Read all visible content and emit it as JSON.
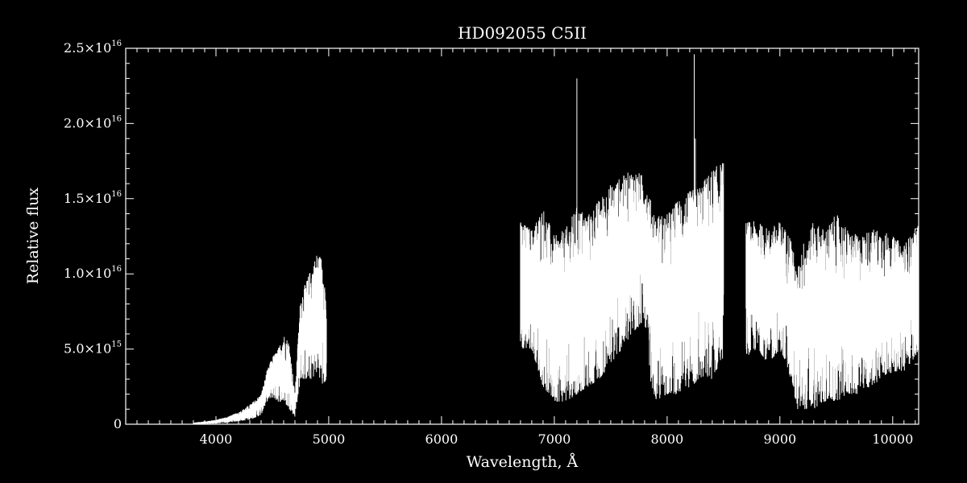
{
  "chart_data": {
    "type": "line",
    "title": "HD092055   C5II",
    "xlabel": "Wavelength, Å",
    "ylabel": "Relative flux",
    "xlim": [
      3200,
      10230
    ],
    "ylim": [
      0,
      2.5e+16
    ],
    "x_ticks": [
      {
        "value": 4000,
        "label": "4000"
      },
      {
        "value": 5000,
        "label": "5000"
      },
      {
        "value": 6000,
        "label": "6000"
      },
      {
        "value": 7000,
        "label": "7000"
      },
      {
        "value": 8000,
        "label": "8000"
      },
      {
        "value": 9000,
        "label": "9000"
      },
      {
        "value": 10000,
        "label": "10000"
      }
    ],
    "y_ticks": [
      {
        "value": 0,
        "mantissa": "0",
        "exponent": ""
      },
      {
        "value": 5000000000000000.0,
        "mantissa": "5.0×10",
        "exponent": "15"
      },
      {
        "value": 1e+16,
        "mantissa": "1.0×10",
        "exponent": "16"
      },
      {
        "value": 1.5e+16,
        "mantissa": "1.5×10",
        "exponent": "16"
      },
      {
        "value": 2e+16,
        "mantissa": "2.0×10",
        "exponent": "16"
      },
      {
        "value": 2.5e+16,
        "mantissa": "2.5×10",
        "exponent": "16"
      }
    ],
    "x_minor_step": 100,
    "y_minor_step": 1000000000000000.0,
    "grid": false,
    "colors": {
      "background": "#000000",
      "foreground": "#ffffff"
    },
    "series": [
      {
        "wavelength_A": [
          3800,
          3900,
          4000,
          4100,
          4200,
          4300,
          4400,
          4450,
          4500,
          4550,
          4600,
          4650,
          4700,
          4750,
          4800,
          4850,
          4900,
          4950,
          4980
        ],
        "flux_low": [
          0,
          0,
          50000000000000.0,
          100000000000000.0,
          200000000000000.0,
          300000000000000.0,
          600000000000000.0,
          1500000000000000.0,
          1800000000000000.0,
          1500000000000000.0,
          1500000000000000.0,
          1000000000000000.0,
          500000000000000.0,
          3000000000000000.0,
          3000000000000000.0,
          3000000000000000.0,
          3500000000000000.0,
          2500000000000000.0,
          3000000000000000.0
        ],
        "flux_high": [
          100000000000000.0,
          200000000000000.0,
          300000000000000.0,
          500000000000000.0,
          800000000000000.0,
          1300000000000000.0,
          2000000000000000.0,
          3500000000000000.0,
          4500000000000000.0,
          5000000000000000.0,
          6000000000000000.0,
          5500000000000000.0,
          2000000000000000.0,
          8500000000000000.0,
          9500000000000000.0,
          1.05e+16,
          1.15e+16,
          1.1e+16,
          8000000000000000.0
        ]
      },
      {
        "wavelength_A": [
          6700,
          6800,
          6900,
          7000,
          7100,
          7200,
          7300,
          7400,
          7500,
          7600,
          7700,
          7800,
          7850,
          7900,
          8000,
          8100,
          8200,
          8300,
          8400,
          8500
        ],
        "flux_low": [
          5000000000000000.0,
          5000000000000000.0,
          2500000000000000.0,
          1500000000000000.0,
          1500000000000000.0,
          2000000000000000.0,
          2500000000000000.0,
          3000000000000000.0,
          4000000000000000.0,
          5000000000000000.0,
          6000000000000000.0,
          7000000000000000.0,
          3000000000000000.0,
          1500000000000000.0,
          2000000000000000.0,
          2000000000000000.0,
          2500000000000000.0,
          3000000000000000.0,
          3000000000000000.0,
          4500000000000000.0
        ],
        "flux_high": [
          1.35e+16,
          1.3e+16,
          1.45e+16,
          1.25e+16,
          1.3e+16,
          1.45e+16,
          1.4e+16,
          1.5e+16,
          1.6e+16,
          1.65e+16,
          1.7e+16,
          1.65e+16,
          1.5e+16,
          1.4e+16,
          1.4e+16,
          1.5e+16,
          1.55e+16,
          1.6e+16,
          1.7e+16,
          1.75e+16
        ],
        "spikes": [
          [
            7200,
            2.3e+16
          ],
          [
            8240,
            2.46e+16
          ],
          [
            8250,
            1.9e+16
          ]
        ]
      },
      {
        "wavelength_A": [
          8700,
          8800,
          8900,
          9000,
          9100,
          9150,
          9200,
          9300,
          9400,
          9500,
          9600,
          9700,
          9800,
          9900,
          10000,
          10100,
          10200,
          10230
        ],
        "flux_low": [
          4500000000000000.0,
          5000000000000000.0,
          4000000000000000.0,
          5000000000000000.0,
          3000000000000000.0,
          1000000000000000.0,
          1000000000000000.0,
          1000000000000000.0,
          1500000000000000.0,
          1500000000000000.0,
          2000000000000000.0,
          2000000000000000.0,
          2500000000000000.0,
          3000000000000000.0,
          3500000000000000.0,
          3500000000000000.0,
          4500000000000000.0,
          5000000000000000.0
        ],
        "flux_high": [
          1.35e+16,
          1.35e+16,
          1.3e+16,
          1.35e+16,
          1.25e+16,
          1e+16,
          1.2e+16,
          1.35e+16,
          1.3e+16,
          1.4e+16,
          1.3e+16,
          1.25e+16,
          1.3e+16,
          1.3e+16,
          1.25e+16,
          1.2e+16,
          1.3e+16,
          1.35e+16
        ]
      }
    ]
  }
}
